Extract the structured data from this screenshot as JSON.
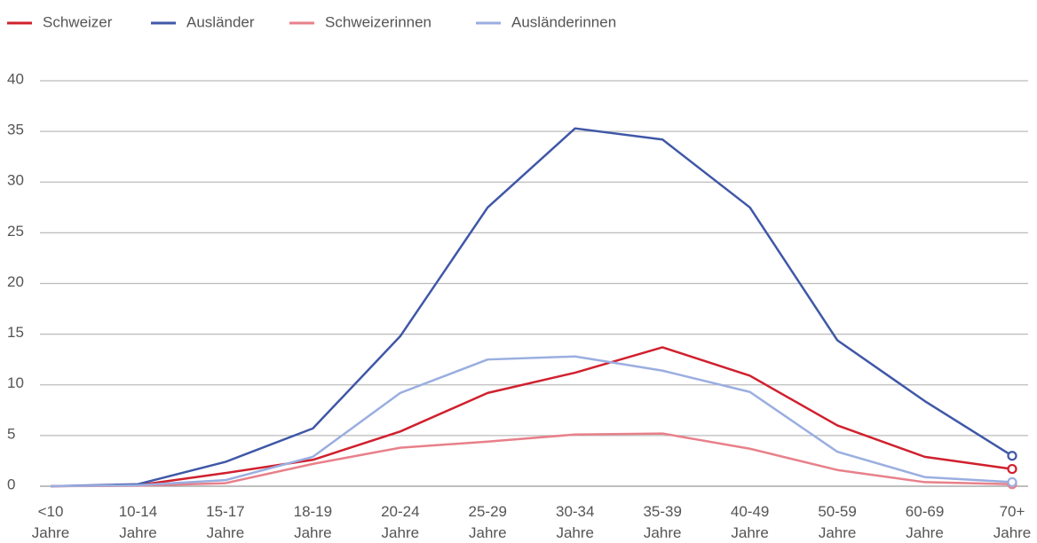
{
  "chart_data": {
    "type": "line",
    "categories": [
      "<10 Jahre",
      "10-14 Jahre",
      "15-17 Jahre",
      "18-19 Jahre",
      "20-24 Jahre",
      "25-29 Jahre",
      "30-34 Jahre",
      "35-39 Jahre",
      "40-49 Jahre",
      "50-59 Jahre",
      "60-69 Jahre",
      "70+ Jahre"
    ],
    "series": [
      {
        "name": "Schweizer",
        "color": "#d0202e",
        "values": [
          0,
          0.1,
          1.3,
          2.6,
          5.4,
          9.2,
          11.2,
          13.7,
          10.9,
          6.0,
          2.9,
          1.7
        ]
      },
      {
        "name": "Ausländer",
        "color": "#3f57a7",
        "values": [
          0,
          0.2,
          2.4,
          5.7,
          14.8,
          27.5,
          35.3,
          34.2,
          27.5,
          14.4,
          8.4,
          3.0
        ]
      },
      {
        "name": "Schweizerinnen",
        "color": "#e8808a",
        "values": [
          0,
          0.05,
          0.3,
          2.2,
          3.8,
          4.4,
          5.1,
          5.2,
          3.7,
          1.6,
          0.4,
          0.2
        ]
      },
      {
        "name": "Ausländerinnen",
        "color": "#9aaee0",
        "values": [
          0,
          0.1,
          0.6,
          2.9,
          9.2,
          12.5,
          12.8,
          11.4,
          9.3,
          3.4,
          0.9,
          0.4
        ]
      }
    ],
    "ylim": [
      0,
      40
    ],
    "yticks": [
      0,
      5,
      10,
      15,
      20,
      25,
      30,
      35,
      40
    ],
    "grid": true,
    "legend": "top-left"
  }
}
